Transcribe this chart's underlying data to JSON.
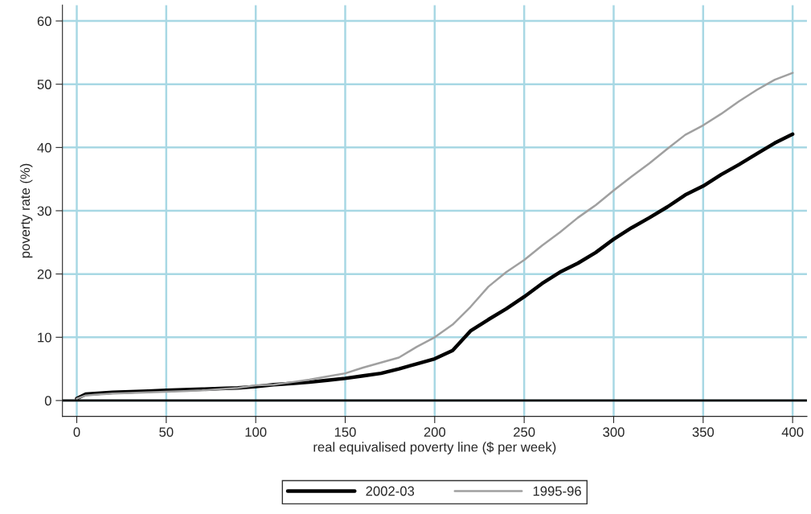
{
  "chart_data": {
    "type": "line",
    "xlabel": "real equivalised poverty line ($ per week)",
    "ylabel": "poverty rate (%)",
    "xlim": [
      -8,
      408
    ],
    "ylim": [
      -2.5,
      62.5
    ],
    "xticks": [
      0,
      50,
      100,
      150,
      200,
      250,
      300,
      350,
      400
    ],
    "yticks": [
      0,
      10,
      20,
      30,
      40,
      50,
      60
    ],
    "grid": true,
    "legend": "bottom",
    "line_style": "solid",
    "marker": "none",
    "ref_lines": [
      {
        "axis": "y",
        "value": 0,
        "color": "#000000"
      }
    ],
    "series": [
      {
        "name": "2002-03",
        "color": "#000000",
        "x": [
          0,
          5,
          10,
          20,
          30,
          40,
          50,
          60,
          70,
          80,
          90,
          100,
          110,
          120,
          130,
          140,
          150,
          160,
          170,
          180,
          190,
          200,
          210,
          220,
          230,
          240,
          250,
          260,
          270,
          280,
          290,
          300,
          310,
          320,
          330,
          340,
          350,
          360,
          370,
          380,
          390,
          400
        ],
        "values": [
          0.3,
          1.0,
          1.1,
          1.3,
          1.4,
          1.5,
          1.6,
          1.7,
          1.8,
          1.9,
          2.0,
          2.2,
          2.5,
          2.7,
          2.9,
          3.2,
          3.5,
          3.9,
          4.3,
          5.0,
          5.8,
          6.6,
          7.9,
          11.0,
          12.8,
          14.5,
          16.4,
          18.5,
          20.3,
          21.7,
          23.4,
          25.5,
          27.3,
          28.9,
          30.6,
          32.5,
          33.9,
          35.7,
          37.3,
          39.0,
          40.7,
          42.1
        ]
      },
      {
        "name": "1995-96",
        "color": "#a0a0a0",
        "x": [
          0,
          5,
          10,
          20,
          30,
          40,
          50,
          60,
          70,
          80,
          90,
          100,
          110,
          120,
          130,
          140,
          150,
          160,
          170,
          180,
          190,
          200,
          210,
          220,
          230,
          240,
          250,
          260,
          270,
          280,
          290,
          300,
          310,
          320,
          330,
          340,
          350,
          360,
          370,
          380,
          390,
          400
        ],
        "values": [
          0.3,
          0.8,
          0.9,
          1.1,
          1.2,
          1.3,
          1.4,
          1.5,
          1.6,
          1.8,
          2.0,
          2.4,
          2.5,
          2.9,
          3.3,
          3.8,
          4.3,
          5.2,
          6.0,
          6.8,
          8.5,
          10.0,
          12.0,
          14.8,
          18.0,
          20.3,
          22.2,
          24.5,
          26.6,
          28.9,
          30.9,
          33.2,
          35.4,
          37.5,
          39.8,
          42.0,
          43.5,
          45.3,
          47.3,
          49.1,
          50.7,
          51.8
        ]
      }
    ]
  }
}
